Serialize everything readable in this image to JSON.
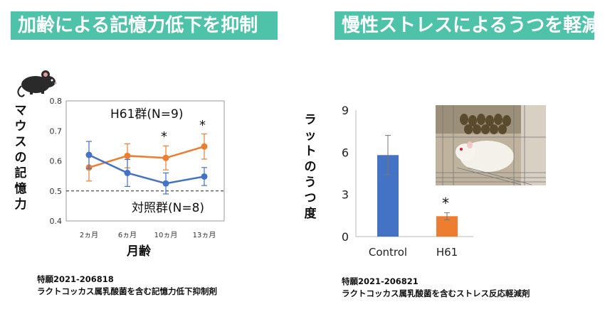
{
  "banners": {
    "left": "加齢による記憶力低下を抑制",
    "right": "慢性ストレスによるうつを軽減"
  },
  "patents": {
    "left_number": "特願2021-206818",
    "left_title": "ラクトコッカス属乳酸菌を含む記憶力低下抑制剤",
    "right_number": "特願2021-206821",
    "right_title": "ラクトコッカス属乳酸菌を含むストレス反応軽減剤"
  },
  "icons": {
    "mouse": "mouse-icon",
    "photo": "rat-in-cage-photo"
  },
  "colors": {
    "banner": "#4fc3a9",
    "blue": "#4472c4",
    "orange": "#ed7d31"
  },
  "chart_data": [
    {
      "type": "line",
      "ylabel": "マウスの記憶力",
      "xlabel": "月齢",
      "categories": [
        "2ヵ月",
        "6ヵ月",
        "10ヵ月",
        "13ヵ月"
      ],
      "ylim": [
        0.4,
        0.8
      ],
      "yticks": [
        "0.8",
        "0.7",
        "0.6",
        "0.5",
        "0.4"
      ],
      "reference_line": 0.5,
      "series": [
        {
          "name": "H61群(N=9)",
          "color": "#ed7d31",
          "values": [
            0.578,
            0.617,
            0.61,
            0.648
          ],
          "errors": [
            0.045,
            0.04,
            0.04,
            0.042
          ]
        },
        {
          "name": "対照群(N=8)",
          "color": "#4472c4",
          "values": [
            0.62,
            0.56,
            0.525,
            0.548
          ],
          "errors": [
            0.045,
            0.045,
            0.035,
            0.03
          ]
        }
      ],
      "annotations": [
        "*",
        "*"
      ]
    },
    {
      "type": "bar",
      "ylabel": "ラットのうつ度",
      "categories": [
        "Control",
        "H61"
      ],
      "ylim": [
        0,
        9
      ],
      "yticks": [
        "9",
        "6",
        "3",
        "0"
      ],
      "series": [
        {
          "values": [
            5.8,
            1.45
          ],
          "errors": [
            1.4,
            0.25
          ],
          "colors": [
            "#4472c4",
            "#ed7d31"
          ]
        }
      ],
      "annotations": [
        "*"
      ]
    }
  ]
}
